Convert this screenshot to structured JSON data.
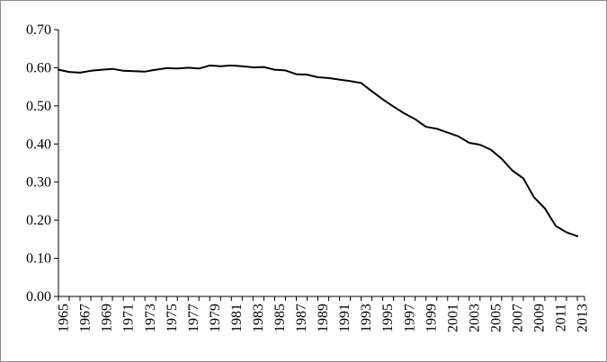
{
  "chart_data": {
    "type": "line",
    "title": "",
    "xlabel": "",
    "ylabel": "",
    "ylim": [
      0,
      0.7
    ],
    "y_ticks": [
      "0.00",
      "0.10",
      "0.20",
      "0.30",
      "0.40",
      "0.50",
      "0.60",
      "0.70"
    ],
    "x_tick_labels": [
      "1965",
      "1967",
      "1969",
      "1971",
      "1973",
      "1975",
      "1977",
      "1979",
      "1981",
      "1983",
      "1985",
      "1987",
      "1989",
      "1991",
      "1993",
      "1995",
      "1997",
      "1999",
      "2001",
      "2003",
      "2005",
      "2007",
      "2009",
      "2011",
      "2013"
    ],
    "grid": false,
    "legend": "none",
    "line_color": "#000000",
    "series": [
      {
        "x": [
          1965,
          1966,
          1967,
          1968,
          1969,
          1970,
          1971,
          1972,
          1973,
          1974,
          1975,
          1976,
          1977,
          1978,
          1979,
          1980,
          1981,
          1982,
          1983,
          1984,
          1985,
          1986,
          1987,
          1988,
          1989,
          1990,
          1991,
          1992,
          1993,
          1994,
          1995,
          1996,
          1997,
          1998,
          1999,
          2000,
          2001,
          2002,
          2003,
          2004,
          2005,
          2006,
          2007,
          2008,
          2009,
          2010,
          2011,
          2012,
          2013
        ],
        "values": [
          0.595,
          0.589,
          0.587,
          0.592,
          0.595,
          0.597,
          0.592,
          0.591,
          0.59,
          0.595,
          0.599,
          0.598,
          0.6,
          0.598,
          0.606,
          0.604,
          0.606,
          0.604,
          0.601,
          0.602,
          0.595,
          0.593,
          0.583,
          0.582,
          0.575,
          0.573,
          0.569,
          0.565,
          0.56,
          0.538,
          0.517,
          0.498,
          0.48,
          0.465,
          0.445,
          0.44,
          0.43,
          0.42,
          0.403,
          0.398,
          0.385,
          0.361,
          0.33,
          0.31,
          0.26,
          0.231,
          0.185,
          0.168,
          0.158
        ]
      }
    ]
  }
}
